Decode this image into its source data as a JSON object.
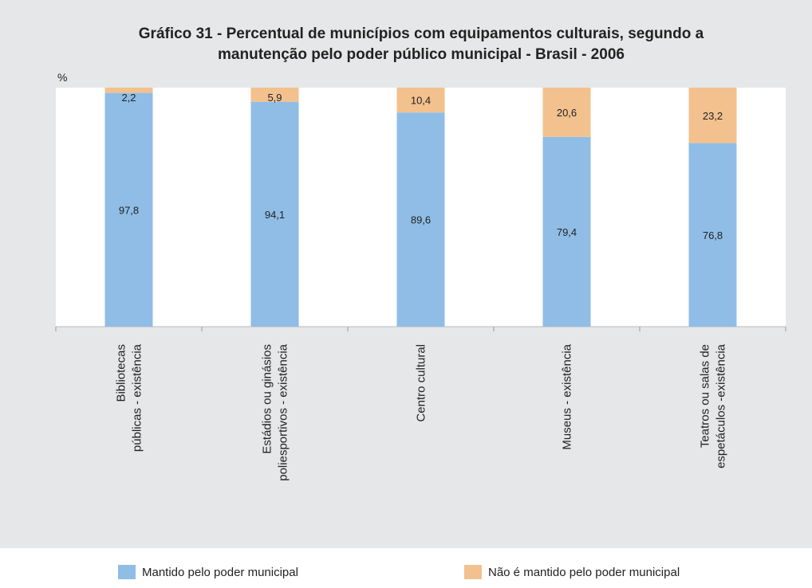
{
  "chart_data": {
    "type": "stacked_bar",
    "title": [
      "Gráfico 31 - Percentual de municípios com equipamentos culturais, segundo a",
      "manutenção pelo poder público municipal - Brasil - 2006"
    ],
    "y_label": "%",
    "categories": [
      "Bibliotecas\npúblicas - existência",
      "Estádios ou ginásios\npoliesportivos - existência",
      "Centro cultural",
      "Museus - existência",
      "Teatros ou salas de\nespetáculos -existência"
    ],
    "series": [
      {
        "name": "Mantido pelo poder municipal",
        "color": "#8fbde6",
        "values": [
          97.8,
          94.1,
          89.6,
          79.4,
          76.8
        ],
        "value_labels": [
          "97,8",
          "94,1",
          "89,6",
          "79,4",
          "76,8"
        ]
      },
      {
        "name": "Não é mantido pelo poder municipal",
        "color": "#f2c18e",
        "values": [
          2.2,
          5.9,
          10.4,
          20.6,
          23.2
        ],
        "value_labels": [
          "2,2",
          "5,9",
          "10,4",
          "20,6",
          "23,2"
        ]
      }
    ],
    "ylim": [
      0,
      100
    ]
  }
}
